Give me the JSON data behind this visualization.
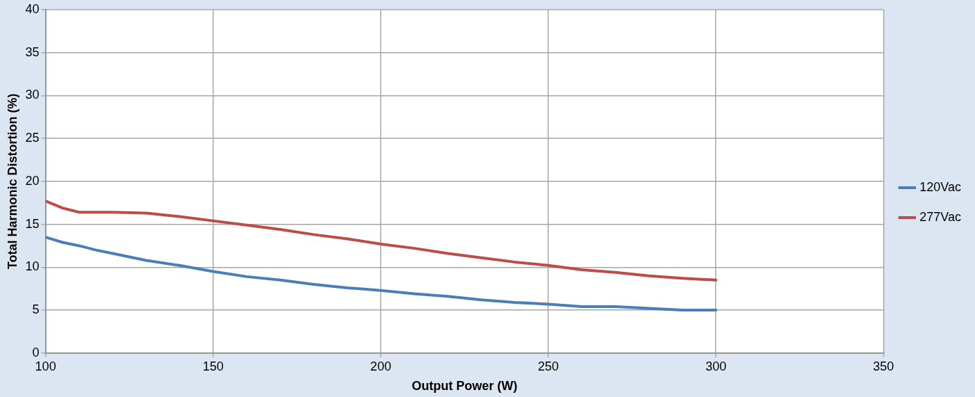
{
  "chart_data": {
    "type": "line",
    "xlabel": "Output Power (W)",
    "ylabel": "Total Harmonic Distortion (%)",
    "xlim": [
      100,
      350
    ],
    "xticks": [
      100,
      150,
      200,
      250,
      300,
      350
    ],
    "ylim": [
      0,
      40
    ],
    "yticks": [
      0,
      5,
      10,
      15,
      20,
      25,
      30,
      35,
      40
    ],
    "grid": true,
    "legend": "right",
    "marker": "none",
    "line_style": "solid",
    "series": [
      {
        "name": "120Vac",
        "color": "#4a7ebb",
        "x": [
          100,
          105,
          110,
          115,
          120,
          125,
          130,
          140,
          150,
          160,
          170,
          180,
          190,
          200,
          210,
          220,
          230,
          240,
          250,
          260,
          270,
          280,
          290,
          300
        ],
        "values": [
          13.5,
          12.9,
          12.5,
          12.0,
          11.6,
          11.2,
          10.8,
          10.2,
          9.5,
          8.9,
          8.5,
          8.0,
          7.6,
          7.3,
          6.9,
          6.6,
          6.2,
          5.9,
          5.7,
          5.4,
          5.4,
          5.2,
          5.0,
          5.0
        ]
      },
      {
        "name": "277Vac",
        "color": "#be4b48",
        "x": [
          100,
          105,
          110,
          120,
          130,
          140,
          150,
          160,
          170,
          180,
          190,
          200,
          210,
          220,
          230,
          240,
          250,
          260,
          270,
          280,
          290,
          300
        ],
        "values": [
          17.7,
          16.9,
          16.4,
          16.4,
          16.3,
          15.9,
          15.4,
          14.9,
          14.4,
          13.8,
          13.3,
          12.7,
          12.2,
          11.6,
          11.1,
          10.6,
          10.2,
          9.7,
          9.4,
          9.0,
          8.7,
          8.5
        ]
      }
    ]
  }
}
